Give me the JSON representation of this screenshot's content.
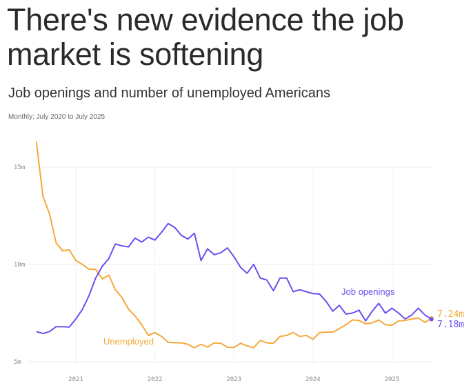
{
  "chart_data": {
    "type": "line",
    "title": "There's new evidence the job market is softening",
    "subtitle": "Job openings and number of unemployed Americans",
    "note": "Monthly; July 2020 to July 2025",
    "xlabel": "",
    "ylabel": "",
    "x_start": "2020-07",
    "x_ticks": [
      "2021",
      "2022",
      "2023",
      "2024",
      "2025"
    ],
    "y_ticks": [
      "5m",
      "10m",
      "15m"
    ],
    "y_tick_values": [
      5,
      10,
      15
    ],
    "ylim": [
      5,
      16.5
    ],
    "grid": true,
    "series": [
      {
        "name": "Unemployed",
        "color": "#f5a83a",
        "end_label": "7.24m",
        "values": [
          16.3,
          13.5,
          12.6,
          11.1,
          10.7,
          10.75,
          10.2,
          10.0,
          9.75,
          9.75,
          9.25,
          9.45,
          8.7,
          8.3,
          7.7,
          7.35,
          6.9,
          6.35,
          6.5,
          6.3,
          6.0,
          5.98,
          5.97,
          5.9,
          5.72,
          5.9,
          5.75,
          5.97,
          5.95,
          5.75,
          5.73,
          5.95,
          5.82,
          5.72,
          6.1,
          5.97,
          5.95,
          6.3,
          6.35,
          6.5,
          6.3,
          6.35,
          6.15,
          6.5,
          6.52,
          6.52,
          6.7,
          6.9,
          7.15,
          7.12,
          6.95,
          7.0,
          7.15,
          6.9,
          6.88,
          7.1,
          7.12,
          7.2,
          7.25,
          7.02,
          7.24
        ]
      },
      {
        "name": "Job openings",
        "color": "#6b4ef0",
        "end_label": "7.18m",
        "values": [
          6.55,
          6.45,
          6.55,
          6.8,
          6.8,
          6.78,
          7.2,
          7.7,
          8.4,
          9.3,
          9.9,
          10.3,
          11.05,
          10.95,
          10.9,
          11.35,
          11.15,
          11.4,
          11.25,
          11.65,
          12.1,
          11.9,
          11.5,
          11.3,
          11.6,
          10.2,
          10.8,
          10.5,
          10.6,
          10.85,
          10.4,
          9.85,
          9.55,
          10.0,
          9.3,
          9.2,
          8.65,
          9.3,
          9.3,
          8.6,
          8.7,
          8.6,
          8.5,
          8.48,
          8.1,
          7.6,
          7.9,
          7.45,
          7.5,
          7.65,
          7.1,
          7.6,
          8.0,
          7.5,
          7.75,
          7.5,
          7.2,
          7.4,
          7.75,
          7.4,
          7.18
        ]
      }
    ]
  }
}
